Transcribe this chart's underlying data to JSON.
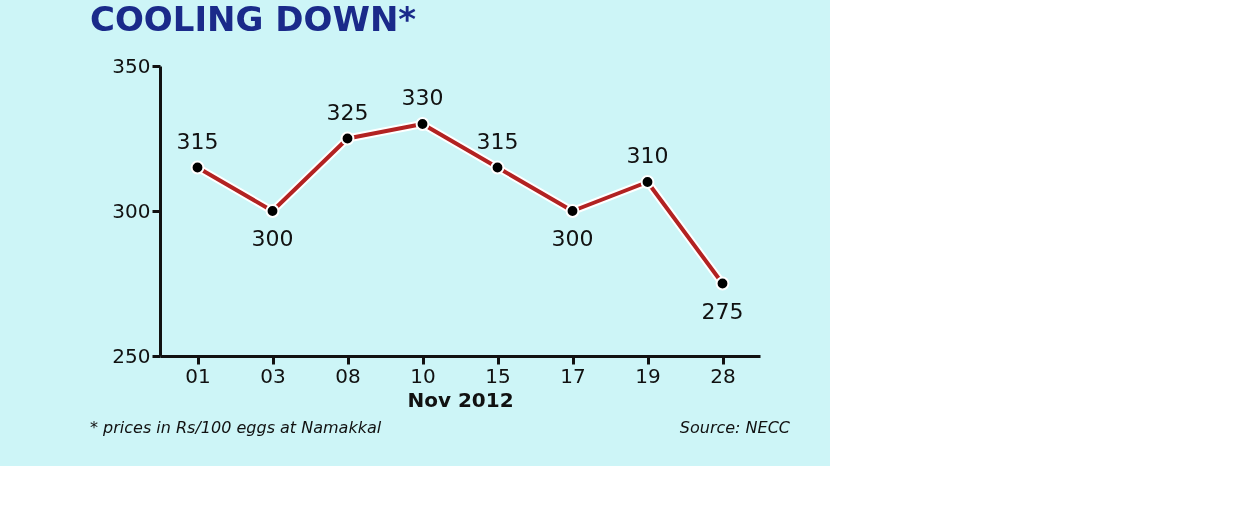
{
  "chart_data": {
    "type": "line",
    "title": "COOLING DOWN*",
    "xlabel": "Nov 2012",
    "categories": [
      "01",
      "03",
      "08",
      "10",
      "15",
      "17",
      "19",
      "28"
    ],
    "series": [
      {
        "color": "#b22222",
        "values": [
          315,
          300,
          325,
          330,
          315,
          300,
          310,
          275
        ]
      }
    ],
    "ylim": [
      250,
      350
    ],
    "yticks": [
      250,
      300,
      350
    ],
    "grid": false,
    "marker": "circle",
    "line_style": "solid",
    "data_labels": true,
    "annotations": [
      "* prices in Rs/100 eggs at Namakkal",
      "Source: NECC"
    ]
  }
}
